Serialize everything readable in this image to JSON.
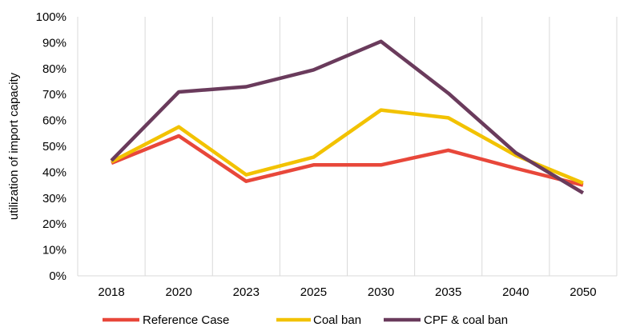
{
  "chart_data": {
    "type": "line",
    "categories": [
      "2018",
      "2020",
      "2023",
      "2025",
      "2030",
      "2035",
      "2040",
      "2050"
    ],
    "series": [
      {
        "name": "Reference Case",
        "color": "#e8473a",
        "values": [
          43.5,
          54,
          36.5,
          42.8,
          42.8,
          48.5,
          41.5,
          35
        ]
      },
      {
        "name": "Coal ban",
        "color": "#f2c200",
        "values": [
          44,
          57.5,
          39,
          45.8,
          64,
          61,
          46.5,
          35.8
        ]
      },
      {
        "name": "CPF & coal ban",
        "color": "#6a3b5c",
        "values": [
          44.5,
          71,
          73,
          79.5,
          90.5,
          70.5,
          47.5,
          32
        ]
      }
    ],
    "ylim": [
      0,
      100
    ],
    "yticks": [
      "0%",
      "10%",
      "20%",
      "30%",
      "40%",
      "50%",
      "60%",
      "70%",
      "80%",
      "90%",
      "100%"
    ],
    "ylabel": "utilization of import capacity",
    "xlabel": "",
    "grid": "vertical",
    "legend_position": "bottom"
  }
}
